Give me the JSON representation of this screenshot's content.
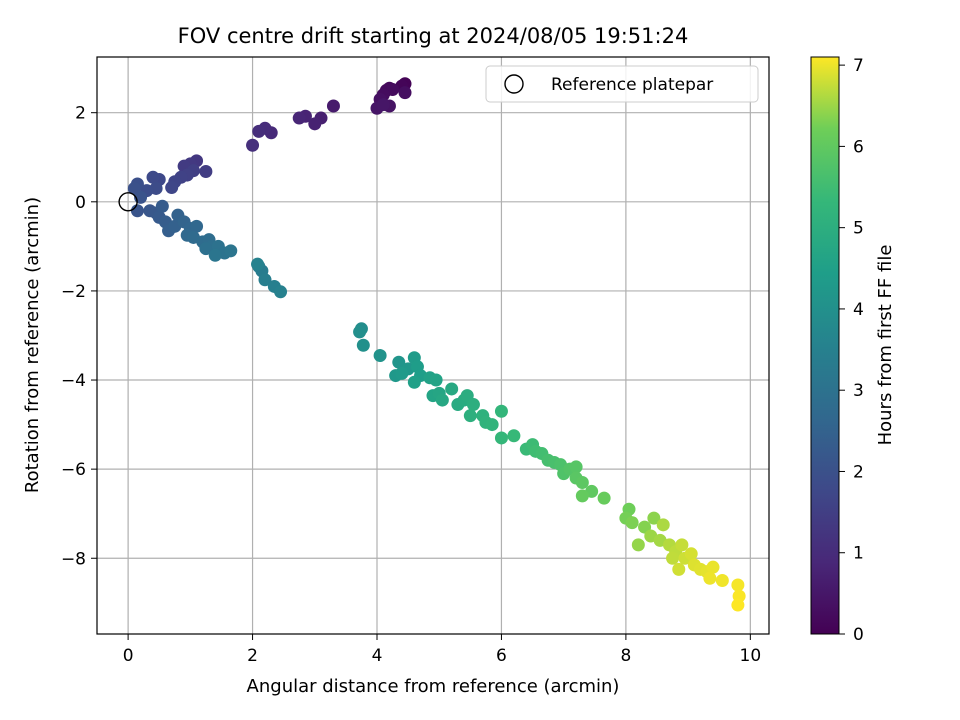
{
  "chart_data": {
    "type": "scatter",
    "title": "FOV centre drift starting at 2024/08/05 19:51:24",
    "xlabel": "Angular distance from reference (arcmin)",
    "ylabel": "Rotation from reference (arcmin)",
    "xlim": [
      -0.5,
      10.3
    ],
    "ylim": [
      -9.7,
      3.25
    ],
    "xticks": [
      0,
      2,
      4,
      6,
      8,
      10
    ],
    "yticks": [
      -8,
      -6,
      -4,
      -2,
      0,
      2
    ],
    "grid": true,
    "legend": {
      "placement": "top-right",
      "entries": [
        "Reference platepar"
      ]
    },
    "reference_point": {
      "x": 0,
      "y": 0,
      "label": "Reference platepar"
    },
    "colorbar": {
      "label": "Hours from first FF file",
      "colormap": "viridis",
      "range": [
        0,
        7.1
      ],
      "ticks": [
        0,
        1,
        2,
        3,
        4,
        5,
        6,
        7
      ]
    },
    "points": [
      {
        "x": 4.45,
        "y": 2.65,
        "c": 0.05
      },
      {
        "x": 4.4,
        "y": 2.6,
        "c": 0.1
      },
      {
        "x": 4.2,
        "y": 2.55,
        "c": 0.15
      },
      {
        "x": 4.15,
        "y": 2.5,
        "c": 0.2
      },
      {
        "x": 4.25,
        "y": 2.52,
        "c": 0.22
      },
      {
        "x": 4.1,
        "y": 2.4,
        "c": 0.25
      },
      {
        "x": 4.45,
        "y": 2.45,
        "c": 0.3
      },
      {
        "x": 4.05,
        "y": 2.3,
        "c": 0.35
      },
      {
        "x": 4.2,
        "y": 2.15,
        "c": 0.4
      },
      {
        "x": 4.0,
        "y": 2.1,
        "c": 0.45
      },
      {
        "x": 4.1,
        "y": 2.18,
        "c": 0.48
      },
      {
        "x": 3.3,
        "y": 2.15,
        "c": 0.6
      },
      {
        "x": 3.1,
        "y": 1.88,
        "c": 0.7
      },
      {
        "x": 3.0,
        "y": 1.75,
        "c": 0.75
      },
      {
        "x": 2.85,
        "y": 1.92,
        "c": 0.8
      },
      {
        "x": 2.75,
        "y": 1.88,
        "c": 0.85
      },
      {
        "x": 2.3,
        "y": 1.55,
        "c": 0.95
      },
      {
        "x": 2.2,
        "y": 1.65,
        "c": 1.0
      },
      {
        "x": 2.1,
        "y": 1.58,
        "c": 1.05
      },
      {
        "x": 2.0,
        "y": 1.27,
        "c": 1.1
      },
      {
        "x": 1.1,
        "y": 0.92,
        "c": 1.3
      },
      {
        "x": 1.0,
        "y": 0.85,
        "c": 1.35
      },
      {
        "x": 0.9,
        "y": 0.8,
        "c": 1.4
      },
      {
        "x": 1.25,
        "y": 0.68,
        "c": 1.45
      },
      {
        "x": 1.05,
        "y": 0.7,
        "c": 1.5
      },
      {
        "x": 0.95,
        "y": 0.6,
        "c": 1.55
      },
      {
        "x": 0.85,
        "y": 0.55,
        "c": 1.6
      },
      {
        "x": 0.75,
        "y": 0.45,
        "c": 1.65
      },
      {
        "x": 0.7,
        "y": 0.32,
        "c": 1.7
      },
      {
        "x": 0.5,
        "y": 0.5,
        "c": 1.75
      },
      {
        "x": 0.4,
        "y": 0.55,
        "c": 1.8
      },
      {
        "x": 0.45,
        "y": 0.3,
        "c": 1.85
      },
      {
        "x": 0.3,
        "y": 0.25,
        "c": 1.9
      },
      {
        "x": 0.15,
        "y": 0.4,
        "c": 1.95
      },
      {
        "x": 0.1,
        "y": 0.3,
        "c": 2.0
      },
      {
        "x": 0.2,
        "y": 0.1,
        "c": 2.05
      },
      {
        "x": 0.15,
        "y": -0.2,
        "c": 2.1
      },
      {
        "x": 0.35,
        "y": -0.2,
        "c": 2.15
      },
      {
        "x": 0.45,
        "y": -0.25,
        "c": 2.2
      },
      {
        "x": 0.5,
        "y": -0.35,
        "c": 2.25
      },
      {
        "x": 0.55,
        "y": -0.1,
        "c": 2.3
      },
      {
        "x": 0.6,
        "y": -0.45,
        "c": 2.35
      },
      {
        "x": 0.65,
        "y": -0.65,
        "c": 2.4
      },
      {
        "x": 0.75,
        "y": -0.55,
        "c": 2.45
      },
      {
        "x": 0.8,
        "y": -0.3,
        "c": 2.5
      },
      {
        "x": 0.9,
        "y": -0.45,
        "c": 2.55
      },
      {
        "x": 1.0,
        "y": -0.6,
        "c": 2.6
      },
      {
        "x": 1.1,
        "y": -0.55,
        "c": 2.65
      },
      {
        "x": 0.95,
        "y": -0.75,
        "c": 2.7
      },
      {
        "x": 1.05,
        "y": -0.8,
        "c": 2.75
      },
      {
        "x": 1.2,
        "y": -0.9,
        "c": 2.8
      },
      {
        "x": 1.3,
        "y": -0.85,
        "c": 2.85
      },
      {
        "x": 1.35,
        "y": -1.0,
        "c": 2.9
      },
      {
        "x": 1.25,
        "y": -1.05,
        "c": 2.95
      },
      {
        "x": 1.45,
        "y": -1.0,
        "c": 3.0
      },
      {
        "x": 1.55,
        "y": -1.15,
        "c": 3.05
      },
      {
        "x": 1.65,
        "y": -1.1,
        "c": 3.1
      },
      {
        "x": 1.4,
        "y": -1.2,
        "c": 3.12
      },
      {
        "x": 2.1,
        "y": -1.45,
        "c": 3.3
      },
      {
        "x": 2.15,
        "y": -1.55,
        "c": 3.35
      },
      {
        "x": 2.2,
        "y": -1.75,
        "c": 3.4
      },
      {
        "x": 2.35,
        "y": -1.9,
        "c": 3.45
      },
      {
        "x": 2.45,
        "y": -2.02,
        "c": 3.5
      },
      {
        "x": 2.08,
        "y": -1.4,
        "c": 3.55
      },
      {
        "x": 3.75,
        "y": -2.85,
        "c": 3.9
      },
      {
        "x": 3.72,
        "y": -2.92,
        "c": 3.95
      },
      {
        "x": 3.78,
        "y": -3.22,
        "c": 4.0
      },
      {
        "x": 4.05,
        "y": -3.45,
        "c": 4.1
      },
      {
        "x": 4.35,
        "y": -3.6,
        "c": 4.15
      },
      {
        "x": 4.5,
        "y": -3.75,
        "c": 4.2
      },
      {
        "x": 4.3,
        "y": -3.9,
        "c": 4.25
      },
      {
        "x": 4.4,
        "y": -3.85,
        "c": 4.3
      },
      {
        "x": 4.6,
        "y": -3.5,
        "c": 4.35
      },
      {
        "x": 4.65,
        "y": -3.7,
        "c": 4.4
      },
      {
        "x": 4.7,
        "y": -3.9,
        "c": 4.45
      },
      {
        "x": 4.6,
        "y": -4.05,
        "c": 4.5
      },
      {
        "x": 4.85,
        "y": -3.95,
        "c": 4.55
      },
      {
        "x": 4.95,
        "y": -4.0,
        "c": 4.6
      },
      {
        "x": 4.9,
        "y": -4.35,
        "c": 4.65
      },
      {
        "x": 5.0,
        "y": -4.3,
        "c": 4.7
      },
      {
        "x": 5.05,
        "y": -4.45,
        "c": 4.75
      },
      {
        "x": 5.2,
        "y": -4.2,
        "c": 4.8
      },
      {
        "x": 5.3,
        "y": -4.55,
        "c": 4.85
      },
      {
        "x": 5.4,
        "y": -4.45,
        "c": 4.9
      },
      {
        "x": 5.45,
        "y": -4.35,
        "c": 4.95
      },
      {
        "x": 5.55,
        "y": -4.55,
        "c": 5.0
      },
      {
        "x": 5.5,
        "y": -4.8,
        "c": 5.05
      },
      {
        "x": 5.7,
        "y": -4.8,
        "c": 5.1
      },
      {
        "x": 5.75,
        "y": -4.95,
        "c": 5.15
      },
      {
        "x": 5.85,
        "y": -5.0,
        "c": 5.2
      },
      {
        "x": 6.0,
        "y": -4.7,
        "c": 5.25
      },
      {
        "x": 6.0,
        "y": -5.3,
        "c": 5.3
      },
      {
        "x": 6.2,
        "y": -5.25,
        "c": 5.35
      },
      {
        "x": 6.4,
        "y": -5.55,
        "c": 5.4
      },
      {
        "x": 6.5,
        "y": -5.45,
        "c": 5.45
      },
      {
        "x": 6.55,
        "y": -5.6,
        "c": 5.5
      },
      {
        "x": 6.65,
        "y": -5.65,
        "c": 5.55
      },
      {
        "x": 6.75,
        "y": -5.8,
        "c": 5.6
      },
      {
        "x": 6.85,
        "y": -5.85,
        "c": 5.65
      },
      {
        "x": 6.95,
        "y": -5.9,
        "c": 5.7
      },
      {
        "x": 7.0,
        "y": -6.1,
        "c": 5.75
      },
      {
        "x": 7.1,
        "y": -6.0,
        "c": 5.8
      },
      {
        "x": 7.2,
        "y": -5.95,
        "c": 5.85
      },
      {
        "x": 7.2,
        "y": -6.2,
        "c": 5.9
      },
      {
        "x": 7.3,
        "y": -6.3,
        "c": 5.95
      },
      {
        "x": 7.45,
        "y": -6.5,
        "c": 6.0
      },
      {
        "x": 7.3,
        "y": -6.6,
        "c": 6.05
      },
      {
        "x": 7.65,
        "y": -6.65,
        "c": 6.1
      },
      {
        "x": 8.05,
        "y": -6.9,
        "c": 6.2
      },
      {
        "x": 8.0,
        "y": -7.1,
        "c": 6.25
      },
      {
        "x": 8.1,
        "y": -7.2,
        "c": 6.3
      },
      {
        "x": 8.3,
        "y": -7.3,
        "c": 6.35
      },
      {
        "x": 8.45,
        "y": -7.1,
        "c": 6.4
      },
      {
        "x": 8.2,
        "y": -7.7,
        "c": 6.45
      },
      {
        "x": 8.4,
        "y": -7.5,
        "c": 6.5
      },
      {
        "x": 8.55,
        "y": -7.6,
        "c": 6.55
      },
      {
        "x": 8.6,
        "y": -7.25,
        "c": 6.6
      },
      {
        "x": 8.7,
        "y": -7.7,
        "c": 6.65
      },
      {
        "x": 8.8,
        "y": -7.85,
        "c": 6.7
      },
      {
        "x": 8.75,
        "y": -8.0,
        "c": 6.72
      },
      {
        "x": 8.9,
        "y": -7.7,
        "c": 6.75
      },
      {
        "x": 8.95,
        "y": -8.0,
        "c": 6.8
      },
      {
        "x": 8.85,
        "y": -8.25,
        "c": 6.82
      },
      {
        "x": 9.05,
        "y": -7.9,
        "c": 6.85
      },
      {
        "x": 9.1,
        "y": -8.15,
        "c": 6.9
      },
      {
        "x": 9.2,
        "y": -8.25,
        "c": 6.92
      },
      {
        "x": 9.3,
        "y": -8.3,
        "c": 6.95
      },
      {
        "x": 9.4,
        "y": -8.2,
        "c": 6.98
      },
      {
        "x": 9.35,
        "y": -8.45,
        "c": 7.0
      },
      {
        "x": 9.55,
        "y": -8.5,
        "c": 7.02
      },
      {
        "x": 9.8,
        "y": -8.6,
        "c": 7.05
      },
      {
        "x": 9.82,
        "y": -8.85,
        "c": 7.08
      },
      {
        "x": 9.8,
        "y": -9.05,
        "c": 7.1
      }
    ]
  }
}
